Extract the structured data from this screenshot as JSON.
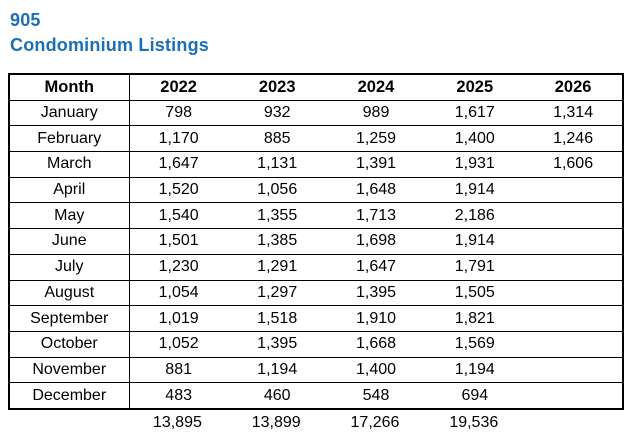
{
  "header": {
    "report_number": "905",
    "report_title": "Condominium Listings"
  },
  "colors": {
    "title_blue": "#1B6FB5",
    "border": "#000000",
    "text": "#000000",
    "background": "#FFFFFF"
  },
  "chart_data": {
    "type": "table",
    "title": "905 Condominium Listings",
    "columns": [
      "Month",
      "2022",
      "2023",
      "2024",
      "2025",
      "2026"
    ],
    "rows": [
      {
        "month": "January",
        "values": [
          "798",
          "932",
          "989",
          "1,617",
          "1,314"
        ]
      },
      {
        "month": "February",
        "values": [
          "1,170",
          "885",
          "1,259",
          "1,400",
          "1,246"
        ]
      },
      {
        "month": "March",
        "values": [
          "1,647",
          "1,131",
          "1,391",
          "1,931",
          "1,606"
        ]
      },
      {
        "month": "April",
        "values": [
          "1,520",
          "1,056",
          "1,648",
          "1,914",
          ""
        ]
      },
      {
        "month": "May",
        "values": [
          "1,540",
          "1,355",
          "1,713",
          "2,186",
          ""
        ]
      },
      {
        "month": "June",
        "values": [
          "1,501",
          "1,385",
          "1,698",
          "1,914",
          ""
        ]
      },
      {
        "month": "July",
        "values": [
          "1,230",
          "1,291",
          "1,647",
          "1,791",
          ""
        ]
      },
      {
        "month": "August",
        "values": [
          "1,054",
          "1,297",
          "1,395",
          "1,505",
          ""
        ]
      },
      {
        "month": "September",
        "values": [
          "1,019",
          "1,518",
          "1,910",
          "1,821",
          ""
        ]
      },
      {
        "month": "October",
        "values": [
          "1,052",
          "1,395",
          "1,668",
          "1,569",
          ""
        ]
      },
      {
        "month": "November",
        "values": [
          "881",
          "1,194",
          "1,400",
          "1,194",
          ""
        ]
      },
      {
        "month": "December",
        "values": [
          "483",
          "460",
          "548",
          "694",
          ""
        ]
      }
    ],
    "totals": [
      "13,895",
      "13,899",
      "17,266",
      "19,536",
      ""
    ]
  }
}
